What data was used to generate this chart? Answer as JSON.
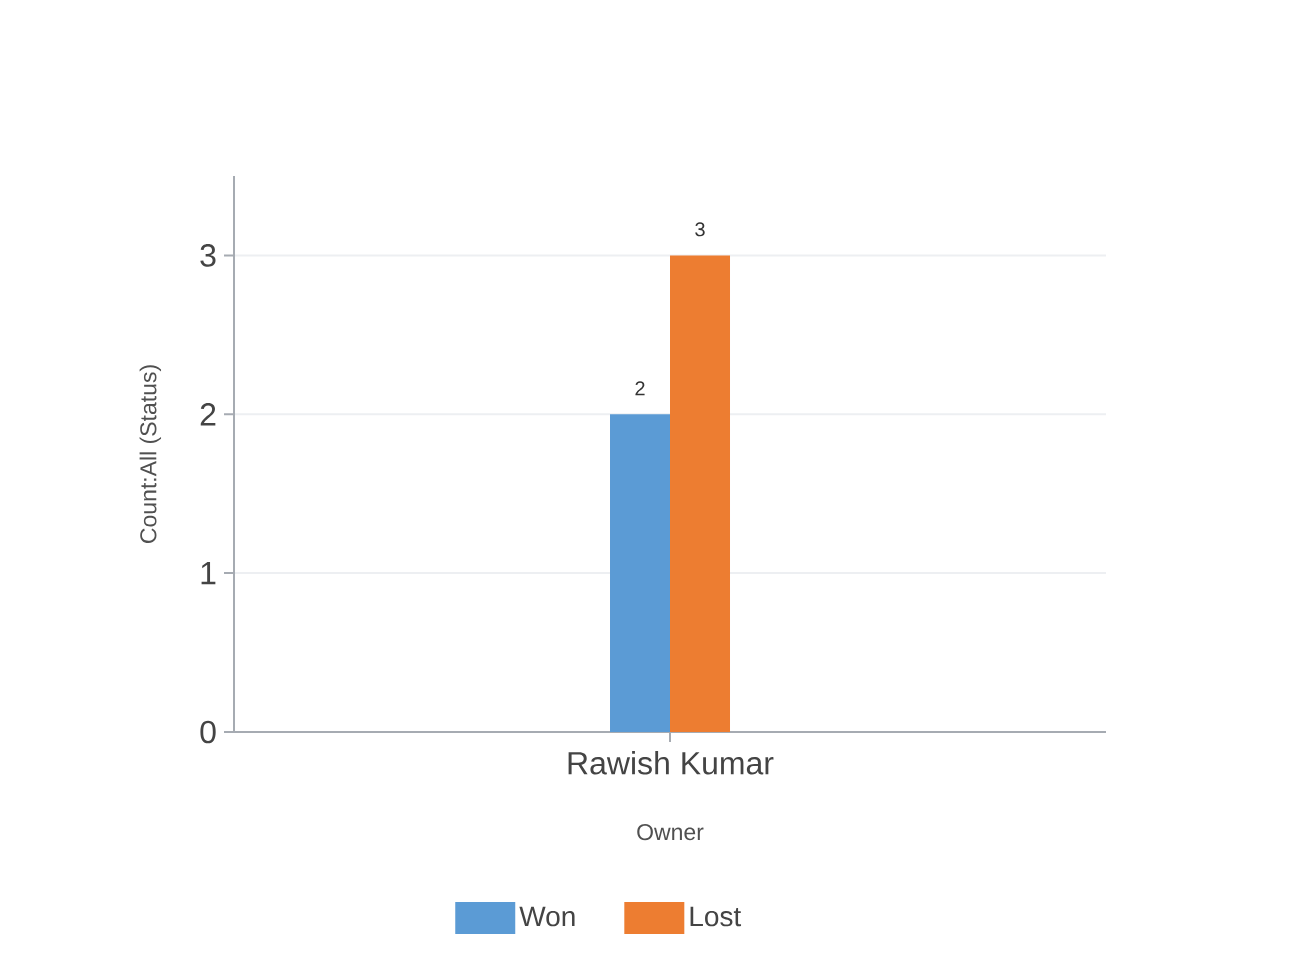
{
  "chart_data": {
    "type": "bar",
    "xlabel": "Owner",
    "ylabel": "Count:All (Status)",
    "categories": [
      "Rawish Kumar"
    ],
    "series": [
      {
        "name": "Won",
        "color": "#5b9bd5",
        "values": [
          2
        ]
      },
      {
        "name": "Lost",
        "color": "#ed7d31",
        "values": [
          3
        ]
      }
    ],
    "ylim": [
      0,
      3.5
    ],
    "yticks": [
      0,
      1,
      2,
      3
    ],
    "grid": "y",
    "legend": "bottom",
    "data_labels": true
  }
}
